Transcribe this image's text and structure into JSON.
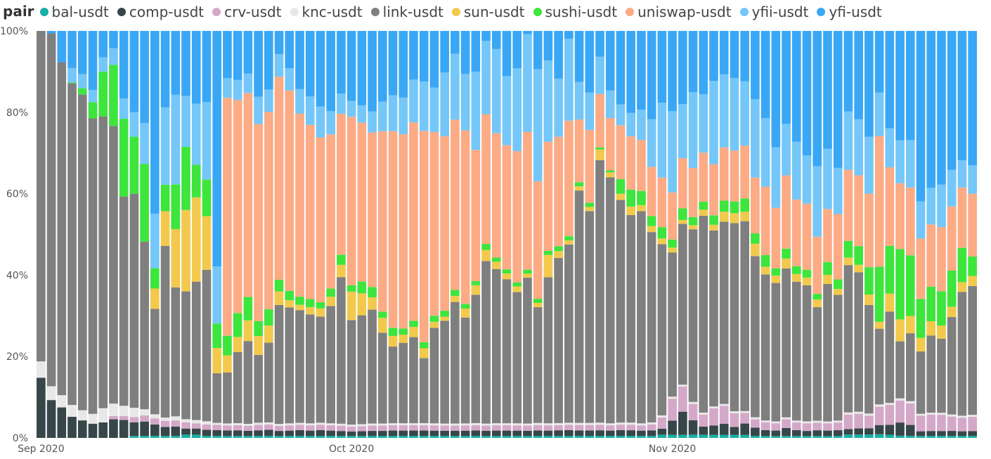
{
  "chart_data": {
    "type": "bar",
    "stacked": true,
    "normalized": true,
    "legend_title": "pair",
    "legend_position": "top-left",
    "grid": false,
    "ylim": [
      0,
      100
    ],
    "y_ticks": [
      "0%",
      "20%",
      "40%",
      "60%",
      "80%",
      "100%"
    ],
    "x_ticks": [
      {
        "label": "Sep 2020",
        "date": "2020-09-01"
      },
      {
        "label": "Oct 2020",
        "date": "2020-10-01"
      },
      {
        "label": "Nov 2020",
        "date": "2020-11-01"
      }
    ],
    "categories": [
      "2020-09-01",
      "2020-09-02",
      "2020-09-03",
      "2020-09-04",
      "2020-09-05",
      "2020-09-06",
      "2020-09-07",
      "2020-09-08",
      "2020-09-09",
      "2020-09-10",
      "2020-09-11",
      "2020-09-12",
      "2020-09-13",
      "2020-09-14",
      "2020-09-15",
      "2020-09-16",
      "2020-09-17",
      "2020-09-18",
      "2020-09-19",
      "2020-09-20",
      "2020-09-21",
      "2020-09-22",
      "2020-09-23",
      "2020-09-24",
      "2020-09-25",
      "2020-09-26",
      "2020-09-27",
      "2020-09-28",
      "2020-09-29",
      "2020-09-30",
      "2020-10-01",
      "2020-10-02",
      "2020-10-03",
      "2020-10-04",
      "2020-10-05",
      "2020-10-06",
      "2020-10-07",
      "2020-10-08",
      "2020-10-09",
      "2020-10-10",
      "2020-10-11",
      "2020-10-12",
      "2020-10-13",
      "2020-10-14",
      "2020-10-15",
      "2020-10-16",
      "2020-10-17",
      "2020-10-18",
      "2020-10-19",
      "2020-10-20",
      "2020-10-21",
      "2020-10-22",
      "2020-10-23",
      "2020-10-24",
      "2020-10-25",
      "2020-10-26",
      "2020-10-27",
      "2020-10-28",
      "2020-10-29",
      "2020-10-30",
      "2020-10-31",
      "2020-11-01",
      "2020-11-02",
      "2020-11-03",
      "2020-11-04",
      "2020-11-05",
      "2020-11-06",
      "2020-11-07",
      "2020-11-08",
      "2020-11-09",
      "2020-11-10",
      "2020-11-11",
      "2020-11-12",
      "2020-11-13",
      "2020-11-14",
      "2020-11-15",
      "2020-11-16",
      "2020-11-17",
      "2020-11-18",
      "2020-11-19",
      "2020-11-20",
      "2020-11-21",
      "2020-11-22",
      "2020-11-23",
      "2020-11-24",
      "2020-11-25",
      "2020-11-26",
      "2020-11-27",
      "2020-11-28",
      "2020-11-29",
      "2020-11-30"
    ],
    "series": [
      {
        "name": "bal-usdt",
        "color": "#17b0a4",
        "values": [
          0,
          0,
          0,
          0,
          0,
          0,
          0,
          0,
          0,
          0.5,
          0.5,
          0.5,
          0.5,
          0.5,
          0.8,
          0.8,
          0.5,
          0.5,
          0.5,
          0.5,
          0.5,
          0.5,
          0.5,
          0.5,
          0.5,
          0.5,
          0.5,
          0.5,
          0.5,
          0.5,
          0.5,
          0.5,
          0.5,
          0.5,
          0.5,
          0.5,
          0.5,
          0.5,
          0.5,
          0.5,
          0.5,
          0.5,
          0.5,
          0.5,
          0.5,
          0.5,
          0.5,
          0.5,
          0.5,
          0.5,
          0.5,
          0.5,
          0.5,
          0.5,
          0.5,
          0.5,
          0.5,
          0.5,
          0.5,
          0.5,
          0.8,
          0.8,
          0.8,
          0.8,
          0.8,
          0.8,
          0.8,
          0.8,
          0.8,
          0.5,
          0.5,
          0.5,
          0.5,
          0.5,
          0.5,
          0.5,
          0.5,
          0.5,
          0.8,
          0.8,
          0.8,
          0.8,
          0.8,
          0.5,
          0.5,
          0.5,
          0.5,
          0.5,
          0.5,
          0.5,
          0.5
        ]
      },
      {
        "name": "comp-usdt",
        "color": "#374649",
        "values": [
          14.8,
          9.3,
          7.5,
          5.4,
          4.3,
          3.5,
          3.8,
          4.5,
          4.4,
          3.3,
          3.5,
          2.8,
          2.2,
          2.3,
          1.5,
          1.5,
          1.5,
          1.4,
          1.4,
          1.4,
          1.3,
          1.3,
          1.5,
          1.3,
          1.3,
          1.4,
          1.3,
          1.4,
          1.3,
          1.2,
          1.2,
          1.2,
          1.2,
          1.2,
          1.3,
          1.3,
          1.3,
          1.3,
          1.3,
          1.3,
          1.3,
          1.3,
          1.3,
          1.3,
          1.3,
          1.3,
          1.3,
          1.3,
          1.3,
          1.3,
          1.4,
          1.4,
          1.3,
          1.3,
          1.3,
          1.3,
          1.4,
          1.3,
          1.3,
          1.4,
          1.5,
          3.5,
          6.0,
          3.5,
          2.0,
          2.5,
          2.8,
          2.0,
          3.0,
          2.0,
          1.5,
          1.5,
          2.0,
          1.5,
          1.3,
          1.5,
          1.5,
          1.5,
          1.3,
          1.5,
          1.5,
          2.0,
          2.5,
          3.0,
          2.5,
          1.2,
          1.2,
          1.2,
          1.2,
          1.2,
          1.2
        ]
      },
      {
        "name": "crv-usdt",
        "color": "#d4a8c8",
        "values": [
          0,
          0,
          0,
          0,
          0,
          0,
          0,
          0.8,
          1.0,
          1.3,
          1.5,
          1.5,
          1.5,
          1.5,
          1.5,
          1.3,
          1.3,
          1.3,
          1.3,
          1.3,
          1.3,
          1.3,
          1.3,
          1.3,
          1.3,
          1.3,
          1.3,
          1.3,
          1.3,
          1.3,
          1.3,
          1.3,
          1.3,
          1.3,
          1.3,
          1.3,
          1.3,
          1.3,
          1.3,
          1.3,
          1.3,
          1.3,
          1.3,
          1.3,
          1.3,
          1.3,
          1.3,
          1.3,
          1.3,
          1.3,
          1.3,
          1.3,
          1.3,
          1.3,
          1.3,
          1.3,
          1.3,
          1.3,
          1.3,
          1.5,
          2.8,
          5.5,
          6.5,
          4.0,
          3.0,
          4.5,
          4.5,
          3.5,
          2.8,
          2.0,
          2.0,
          2.0,
          2.2,
          2.0,
          2.0,
          2.0,
          2.0,
          2.0,
          3.5,
          3.5,
          3.0,
          4.0,
          5.0,
          5.0,
          5.0,
          4.0,
          4.0,
          4.0,
          3.5,
          3.5,
          3.5
        ]
      },
      {
        "name": "knc-usdt",
        "color": "#e8e8e8",
        "values": [
          4.0,
          3.4,
          3.0,
          3.0,
          2.5,
          2.4,
          3.5,
          3.0,
          2.5,
          2.3,
          1.5,
          1.0,
          0.8,
          1.0,
          0.8,
          0.8,
          0.8,
          0.5,
          0.5,
          0.5,
          0.5,
          0.5,
          0.5,
          0.5,
          0.5,
          0.5,
          0.5,
          0.5,
          0.5,
          0.5,
          0.5,
          0.5,
          0.5,
          0.5,
          0.5,
          0.5,
          0.5,
          0.5,
          0.5,
          0.5,
          0.5,
          0.5,
          0.5,
          0.5,
          0.5,
          0.5,
          0.5,
          0.5,
          0.5,
          0.5,
          0.5,
          0.5,
          0.5,
          0.5,
          0.5,
          0.5,
          0.5,
          0.5,
          0.5,
          0.5,
          0.5,
          0.5,
          0.5,
          0.5,
          0.5,
          0.5,
          0.5,
          0.5,
          0.5,
          0.5,
          0.5,
          0.5,
          0.5,
          0.5,
          0.5,
          0.5,
          0.5,
          0.5,
          0.5,
          0.5,
          0.5,
          0.5,
          0.5,
          0.5,
          0.5,
          0.5,
          0.5,
          0.5,
          0.5,
          0.5,
          0.5
        ]
      },
      {
        "name": "link-usdt",
        "color": "#7f7f7f",
        "values": [
          81.2,
          86.7,
          81.8,
          82.0,
          77.6,
          72.6,
          71.7,
          67.2,
          51.4,
          52.6,
          41.0,
          25.9,
          42.2,
          31.7,
          31.4,
          34.0,
          37.2,
          12.2,
          13.0,
          17.8,
          21.2,
          16.1,
          19.6,
          30.7,
          28.6,
          27.7,
          26.9,
          25.8,
          28.9,
          36.1,
          27.5,
          27.8,
          27.7,
          22.1,
          18.8,
          19.8,
          21.1,
          15.8,
          23.6,
          25.8,
          30.4,
          26.3,
          31.2,
          41.0,
          37.9,
          35.4,
          32.4,
          36.6,
          27.9,
          36.0,
          41.2,
          43.5,
          55.6,
          50.9,
          62.0,
          60.7,
          53.6,
          48.8,
          52.5,
          47.9,
          42.5,
          36.0,
          41.7,
          42.2,
          49.0,
          46.5,
          46.2,
          48.0,
          50.2,
          39.0,
          37.8,
          37.8,
          37.6,
          36.0,
          35.3,
          29.8,
          37.6,
          32.7,
          35.3,
          33.5,
          25.8,
          16.5,
          23.0,
          13.0,
          15.7,
          16.0,
          19.0,
          18.3,
          23.7,
          31.8,
          31.8
        ]
      },
      {
        "name": "sun-usdt",
        "color": "#f2c94c",
        "values": [
          0,
          0,
          0,
          0,
          0,
          0,
          0,
          0,
          0,
          0,
          0,
          5.0,
          8.5,
          14.3,
          20.0,
          20.7,
          13.2,
          6.2,
          4.4,
          3.8,
          5.3,
          4.5,
          4.2,
          3.5,
          1.8,
          1.3,
          1.8,
          2.0,
          2.3,
          3.0,
          7.5,
          5.6,
          3.0,
          3.6,
          2.6,
          2.0,
          2.5,
          2.4,
          1.5,
          1.0,
          1.5,
          2.2,
          2.3,
          2.8,
          1.8,
          1.4,
          1.4,
          1.0,
          1.0,
          5.5,
          1.7,
          1.0,
          1.0,
          1.0,
          2.5,
          1.2,
          1.5,
          2.0,
          1.5,
          1.5,
          1.4,
          1.2,
          1.0,
          1.0,
          1.5,
          1.5,
          2.5,
          2.5,
          2.5,
          3.0,
          2.0,
          2.0,
          2.5,
          2.0,
          2.0,
          2.0,
          2.5,
          1.5,
          1.8,
          1.8,
          2.5,
          1.5,
          4.5,
          5.0,
          4.0,
          3.5,
          3.5,
          3.2,
          2.5,
          2.5,
          2.5
        ]
      },
      {
        "name": "sushi-usdt",
        "color": "#3de53d",
        "values": [
          0,
          0,
          0,
          0.2,
          1.5,
          4.0,
          11.0,
          14.8,
          19.1,
          14.0,
          19.0,
          5.0,
          6.5,
          11.0,
          15.5,
          8.0,
          9.0,
          6.0,
          5.0,
          6.0,
          6.0,
          3.5,
          4.0,
          3.0,
          2.3,
          2.0,
          2.0,
          1.5,
          2.0,
          2.5,
          1.7,
          3.0,
          2.5,
          1.5,
          2.0,
          1.5,
          1.5,
          1.5,
          1.5,
          1.5,
          1.5,
          1.2,
          1.0,
          1.5,
          1.0,
          1.0,
          1.0,
          1.0,
          1.0,
          1.0,
          1.2,
          1.0,
          1.0,
          1.0,
          0.5,
          0.5,
          3.5,
          4.0,
          3.5,
          2.5,
          2.8,
          2.0,
          3.0,
          2.0,
          2.0,
          2.5,
          2.8,
          3.0,
          3.5,
          2.5,
          3.0,
          2.0,
          2.5,
          2.0,
          2.0,
          1.5,
          3.5,
          2.5,
          4.0,
          4.5,
          6.5,
          12.0,
          12.0,
          16.0,
          14.0,
          10.0,
          8.5,
          8.5,
          8.8,
          8.8,
          4.8
        ]
      },
      {
        "name": "uniswap-usdt",
        "color": "#fcab85",
        "values": [
          0,
          0,
          0,
          0,
          0,
          0,
          0,
          0,
          0,
          0,
          0,
          0,
          0,
          0,
          0,
          0,
          0,
          0,
          60.8,
          53.4,
          52.2,
          46.8,
          48.5,
          52.4,
          49.5,
          45.0,
          43.0,
          40.1,
          38.0,
          34.7,
          44.3,
          40.6,
          37.6,
          43.9,
          48.2,
          47.8,
          48.6,
          51.4,
          45.4,
          43.8,
          42.6,
          43.1,
          31.9,
          32.7,
          30.6,
          30.5,
          32.4,
          34.6,
          28.3,
          26.9,
          27.3,
          28.2,
          15.0,
          17.5,
          12.6,
          12.9,
          13.0,
          12.5,
          12.6,
          12.4,
          12.3,
          11.8,
          13.0,
          12.0,
          12.2,
          13.5,
          13.5,
          13.0,
          14.0,
          13.5,
          17.7,
          16.5,
          18.5,
          17.3,
          17.2,
          15.0,
          14.5,
          17.0,
          17.0,
          17.0,
          17.5,
          28.5,
          19.8,
          15.0,
          15.7,
          15.5,
          15.3,
          15.8,
          15.6,
          15.5,
          15.5
        ]
      },
      {
        "name": "yfii-usdt",
        "color": "#74c7f8",
        "values": [
          0,
          0,
          0,
          3.7,
          3.5,
          3.0,
          3.5,
          4.0,
          5.0,
          6.0,
          10.0,
          13.4,
          19.0,
          22.0,
          12.5,
          15.0,
          19.0,
          14.0,
          5.0,
          5.0,
          5.0,
          6.5,
          5.5,
          5.8,
          5.5,
          6.0,
          7.0,
          7.5,
          5.7,
          5.0,
          4.2,
          4.4,
          5.1,
          7.2,
          8.8,
          9.0,
          10.5,
          12.0,
          11.0,
          16.0,
          16.5,
          14.0,
          19.0,
          18.5,
          20.7,
          17.0,
          20.5,
          24.5,
          27.0,
          20.0,
          14.5,
          20.0,
          9.0,
          9.0,
          8.8,
          6.8,
          5.0,
          5.5,
          7.5,
          12.0,
          18.6,
          20.3,
          14.0,
          18.5,
          14.5,
          22.0,
          18.5,
          18.5,
          17.0,
          19.0,
          17.7,
          16.5,
          13.0,
          15.0,
          12.5,
          18.5,
          16.5,
          12.0,
          14.0,
          13.5,
          13.5,
          9.5,
          9.8,
          9.8,
          11.0,
          9.5,
          9.0,
          10.5,
          8.9,
          7.0,
          7.0
        ]
      },
      {
        "name": "yfi-usdt",
        "color": "#3aa7f5",
        "values": [
          0,
          0.6,
          7.7,
          9.4,
          10.6,
          14.5,
          6.5,
          4.2,
          16.6,
          20.0,
          22.5,
          44.9,
          18.8,
          15.7,
          16.0,
          17.9,
          17.5,
          57.9,
          12.1,
          12.3,
          10.9,
          15.6,
          14.4,
          6.0,
          9.2,
          14.3,
          16.2,
          18.4,
          19.8,
          15.4,
          18.4,
          19.0,
          19.6,
          17.2,
          15.8,
          16.4,
          11.9,
          12.3,
          14.0,
          10.4,
          5.7,
          10.7,
          9.9,
          2.5,
          4.4,
          11.1,
          9.2,
          0.8,
          9.2,
          7.3,
          11.9,
          1.9,
          12.2,
          14.8,
          6.1,
          14.7,
          17.7,
          19.3,
          19.5,
          22.2,
          17.8,
          20.0,
          19.0,
          15.0,
          15.8,
          13.2,
          11.0,
          12.0,
          13.3,
          16.5,
          22.6,
          31.8,
          23.5,
          28.7,
          32.3,
          35.5,
          32.2,
          35.6,
          19.3,
          21.2,
          25.2,
          13.4,
          24.5,
          24.9,
          25.2,
          43.8,
          38.6,
          37.9,
          33.8,
          33.2,
          33.2
        ]
      }
    ]
  }
}
